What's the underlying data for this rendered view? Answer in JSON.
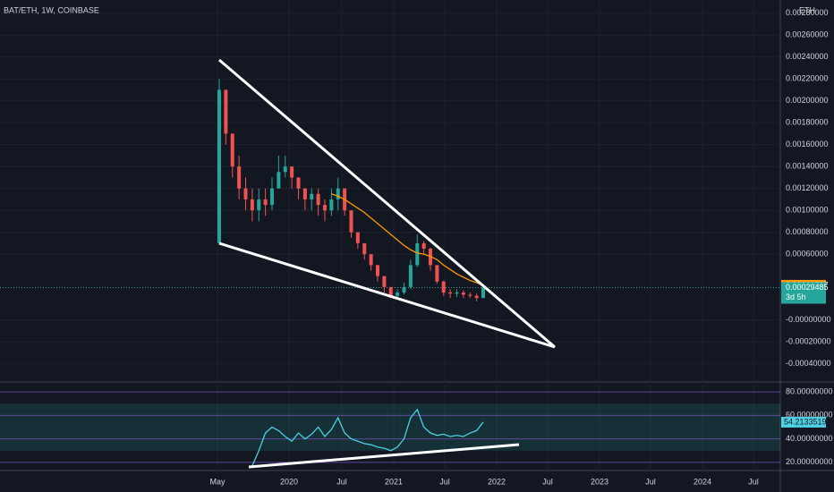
{
  "chart_data": {
    "type": "candlestick",
    "title": "BAT/ETH, 1W, COINBASE",
    "currency": "ETH",
    "up_color": "#26a69a",
    "down_color": "#ef5350",
    "open": [
      0.0007,
      0.0021,
      0.0017,
      0.0014,
      0.0012,
      0.0011,
      0.001,
      0.0011,
      0.00105,
      0.0012,
      0.00135,
      0.0014,
      0.0013,
      0.0012,
      0.0011,
      0.00115,
      0.00105,
      0.001,
      0.0011,
      0.0012,
      0.001,
      0.0008,
      0.0007,
      0.0006,
      0.0005,
      0.0004,
      0.0003,
      0.00022,
      0.00025,
      0.0003,
      0.0005,
      0.0007,
      0.00065,
      0.0005,
      0.00035,
      0.00025,
      0.00024,
      0.00025,
      0.00023,
      0.00022,
      0.0002
    ],
    "high": [
      0.0022,
      0.0021,
      0.0017,
      0.0015,
      0.0013,
      0.0012,
      0.0012,
      0.0012,
      0.0013,
      0.0015,
      0.0015,
      0.0014,
      0.0013,
      0.0012,
      0.0012,
      0.0012,
      0.0011,
      0.0012,
      0.0013,
      0.0012,
      0.001,
      0.0008,
      0.0007,
      0.0006,
      0.0005,
      0.0004,
      0.0003,
      0.00028,
      0.00034,
      0.00055,
      0.00078,
      0.00072,
      0.00066,
      0.0005,
      0.00036,
      0.00028,
      0.00028,
      0.00027,
      0.00025,
      0.00024,
      0.00031
    ],
    "low": [
      0.0007,
      0.0016,
      0.0013,
      0.0011,
      0.001,
      0.0009,
      0.0009,
      0.00095,
      0.001,
      0.0012,
      0.0013,
      0.0012,
      0.0011,
      0.001,
      0.001,
      0.00095,
      0.0009,
      0.00095,
      0.001,
      0.00095,
      0.00075,
      0.00065,
      0.00055,
      0.00045,
      0.00035,
      0.00025,
      0.0002,
      0.0002,
      0.00023,
      0.00028,
      0.00048,
      0.0006,
      0.00045,
      0.00033,
      0.00022,
      0.0002,
      0.00021,
      0.0002,
      0.0002,
      0.00017,
      0.0002
    ],
    "close": [
      0.0021,
      0.0017,
      0.0014,
      0.0012,
      0.0011,
      0.001,
      0.0011,
      0.00105,
      0.0012,
      0.00135,
      0.0014,
      0.0013,
      0.0012,
      0.0011,
      0.00115,
      0.00105,
      0.001,
      0.0011,
      0.0012,
      0.001,
      0.0008,
      0.0007,
      0.0006,
      0.0005,
      0.0004,
      0.0003,
      0.00022,
      0.00025,
      0.0003,
      0.0005,
      0.0007,
      0.00065,
      0.0005,
      0.00035,
      0.00025,
      0.00024,
      0.00025,
      0.00023,
      0.00022,
      0.0002,
      0.00029485
    ],
    "countdown": "3d 5h",
    "ma": {
      "color": "#ff9800",
      "values": [
        null,
        null,
        null,
        null,
        null,
        null,
        null,
        null,
        null,
        null,
        null,
        null,
        null,
        null,
        null,
        null,
        null,
        0.00115,
        0.00113,
        0.0011,
        0.00106,
        0.00102,
        0.00098,
        0.00093,
        0.00088,
        0.00083,
        0.00078,
        0.00073,
        0.00068,
        0.00064,
        0.00061,
        0.0006,
        0.00058,
        0.00055,
        0.0005,
        0.00046,
        0.00042,
        0.00039,
        0.00036,
        0.00034,
        0.00031597
      ]
    },
    "ylim": [
      -0.00055,
      0.00292
    ],
    "yticks": [
      {
        "value": 0.0028,
        "label": "0.00280000"
      },
      {
        "value": 0.0026,
        "label": "0.00260000"
      },
      {
        "value": 0.0024,
        "label": "0.00240000"
      },
      {
        "value": 0.0022,
        "label": "0.00220000"
      },
      {
        "value": 0.002,
        "label": "0.00200000"
      },
      {
        "value": 0.0018,
        "label": "0.00180000"
      },
      {
        "value": 0.0016,
        "label": "0.00160000"
      },
      {
        "value": 0.0014,
        "label": "0.00140000"
      },
      {
        "value": 0.0012,
        "label": "0.00120000"
      },
      {
        "value": 0.001,
        "label": "0.00100000"
      },
      {
        "value": 0.0008,
        "label": "0.00080000"
      },
      {
        "value": 0.0006,
        "label": "0.00060000"
      },
      {
        "value": 0,
        "label": "-0.00000000"
      },
      {
        "value": -0.0002,
        "label": "-0.00020000"
      },
      {
        "value": -0.0004,
        "label": "-0.00040000"
      }
    ],
    "x_axis_labels": [
      "May",
      "2020",
      "Jul",
      "2021",
      "Jul",
      "2022",
      "Jul",
      "2023",
      "Jul",
      "2024",
      "Jul"
    ],
    "rsi": {
      "color": "#4dd0e1",
      "ylim": [
        13.8,
        87.7
      ],
      "yticks": [
        {
          "value": 80,
          "label": "80.00000000"
        },
        {
          "value": 60,
          "label": "60.00000000"
        },
        {
          "value": 40,
          "label": "40.00000000"
        },
        {
          "value": 20,
          "label": "20.00000000"
        }
      ],
      "values": [
        null,
        null,
        null,
        null,
        null,
        17,
        30,
        45,
        50,
        47,
        42,
        38,
        45,
        40,
        44,
        50,
        42,
        48,
        58,
        45,
        40,
        38,
        36,
        35,
        33,
        32,
        30,
        33,
        40,
        58,
        65,
        50,
        45,
        43,
        44,
        42,
        43,
        42,
        45,
        47,
        54.21335198
      ]
    }
  }
}
